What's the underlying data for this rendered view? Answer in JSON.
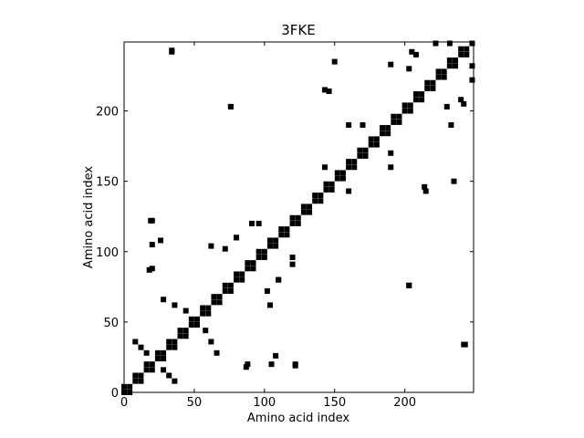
{
  "chart_data": {
    "type": "scatter",
    "title": "3FKE",
    "x_label": "Amino acid index",
    "y_label": "Amino acid index",
    "xlim": [
      0,
      249
    ],
    "ylim": [
      0,
      249
    ],
    "xticks": [
      0,
      50,
      100,
      150,
      200
    ],
    "yticks": [
      0,
      50,
      100,
      150,
      200
    ],
    "color": "#000000",
    "x": [
      0,
      4,
      8,
      12,
      16,
      20,
      24,
      28,
      32,
      36,
      40,
      44,
      48,
      52,
      56,
      60,
      64,
      68,
      72,
      76,
      80,
      84,
      88,
      92,
      96,
      100,
      104,
      108,
      112,
      116,
      120,
      124,
      128,
      132,
      136,
      140,
      144,
      148,
      152,
      156,
      160,
      164,
      168,
      172,
      176,
      180,
      184,
      188,
      192,
      196,
      200,
      204,
      208,
      212,
      216,
      220,
      224,
      228,
      232,
      236,
      240,
      244,
      248,
      0,
      8,
      16,
      24,
      32,
      40,
      48,
      56,
      64,
      72,
      80,
      88,
      96,
      104,
      112,
      120,
      128,
      136,
      144,
      152,
      160,
      168,
      176,
      184,
      192,
      200,
      208,
      216,
      224,
      232,
      240,
      4,
      12,
      20,
      28,
      36,
      44,
      52,
      60,
      68,
      76,
      84,
      92,
      100,
      108,
      116,
      124,
      132,
      140,
      148,
      156,
      164,
      172,
      180,
      188,
      196,
      204,
      212,
      220,
      228,
      236,
      244,
      28,
      36,
      44,
      8,
      12,
      16,
      19,
      26,
      18,
      62,
      80,
      96,
      102,
      110,
      120,
      88,
      105,
      122,
      143,
      160,
      170,
      214,
      230,
      240,
      190,
      205,
      150,
      143,
      34,
      76,
      248,
      243,
      203,
      232,
      66,
      62,
      58,
      36,
      32,
      28,
      122,
      108,
      87,
      104,
      110,
      120,
      72,
      80,
      91,
      20,
      20,
      20,
      160,
      190,
      190,
      146,
      203,
      208,
      233,
      242,
      235,
      215,
      242,
      203,
      222,
      34,
      76,
      248
    ],
    "values": [
      0,
      4,
      8,
      12,
      16,
      20,
      24,
      28,
      32,
      36,
      40,
      44,
      48,
      52,
      56,
      60,
      64,
      68,
      72,
      76,
      80,
      84,
      88,
      92,
      96,
      100,
      104,
      108,
      112,
      116,
      120,
      124,
      128,
      132,
      136,
      140,
      144,
      148,
      152,
      156,
      160,
      164,
      168,
      172,
      176,
      180,
      184,
      188,
      192,
      196,
      200,
      204,
      208,
      212,
      216,
      220,
      224,
      228,
      232,
      236,
      240,
      244,
      248,
      4,
      12,
      20,
      28,
      36,
      44,
      52,
      60,
      68,
      76,
      84,
      92,
      100,
      108,
      116,
      124,
      132,
      140,
      148,
      156,
      164,
      172,
      180,
      188,
      196,
      204,
      212,
      220,
      228,
      236,
      244,
      0,
      8,
      16,
      24,
      32,
      40,
      48,
      56,
      64,
      72,
      80,
      88,
      96,
      104,
      112,
      120,
      128,
      136,
      144,
      152,
      160,
      168,
      176,
      184,
      192,
      200,
      208,
      216,
      224,
      232,
      240,
      66,
      62,
      58,
      36,
      32,
      28,
      122,
      108,
      87,
      104,
      110,
      120,
      72,
      80,
      91,
      20,
      20,
      20,
      160,
      190,
      190,
      146,
      203,
      208,
      233,
      242,
      235,
      215,
      242,
      203,
      222,
      34,
      76,
      248,
      28,
      36,
      44,
      8,
      12,
      16,
      19,
      26,
      18,
      62,
      80,
      96,
      102,
      110,
      120,
      88,
      105,
      122,
      143,
      160,
      170,
      214,
      230,
      240,
      190,
      205,
      150,
      143,
      34,
      76,
      248,
      243,
      203,
      232
    ]
  }
}
